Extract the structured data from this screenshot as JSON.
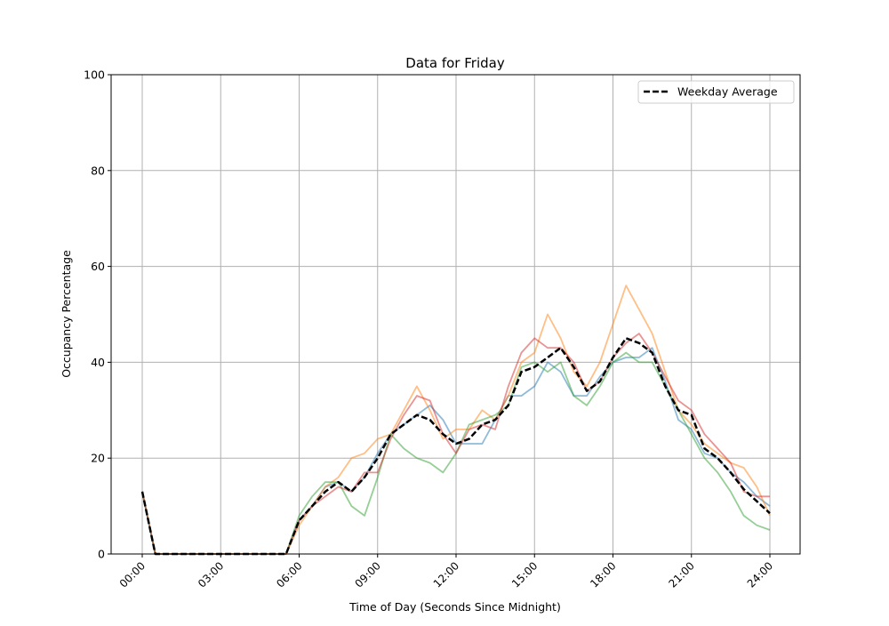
{
  "chart_data": {
    "type": "line",
    "title": "Data for Friday",
    "xlabel": "Time of Day (Seconds Since Midnight)",
    "ylabel": "Occupancy Percentage",
    "ylim": [
      0,
      100
    ],
    "xlim": [
      -4283,
      90560
    ],
    "grid": true,
    "legend_position": "top-right",
    "x_ticks": [
      {
        "value": 0,
        "label": "00:00"
      },
      {
        "value": 10800,
        "label": "03:00"
      },
      {
        "value": 21600,
        "label": "06:00"
      },
      {
        "value": 32400,
        "label": "09:00"
      },
      {
        "value": 43200,
        "label": "12:00"
      },
      {
        "value": 54000,
        "label": "15:00"
      },
      {
        "value": 64800,
        "label": "18:00"
      },
      {
        "value": 75600,
        "label": "21:00"
      },
      {
        "value": 86400,
        "label": "24:00"
      }
    ],
    "y_ticks": [
      {
        "value": 0,
        "label": "0"
      },
      {
        "value": 20,
        "label": "20"
      },
      {
        "value": 40,
        "label": "40"
      },
      {
        "value": 60,
        "label": "60"
      },
      {
        "value": 80,
        "label": "80"
      },
      {
        "value": 100,
        "label": "100"
      }
    ],
    "x": [
      0,
      1800,
      3600,
      5400,
      7200,
      9000,
      10800,
      12600,
      14400,
      16200,
      18000,
      19800,
      21600,
      23400,
      25200,
      27000,
      28800,
      30600,
      32400,
      34200,
      36000,
      37800,
      39600,
      41400,
      43200,
      45000,
      46800,
      48600,
      50400,
      52200,
      54000,
      55800,
      57600,
      59400,
      61200,
      63000,
      64800,
      66600,
      68400,
      70200,
      72000,
      73800,
      75600,
      77400,
      79200,
      81000,
      82800,
      84600,
      86400
    ],
    "series": [
      {
        "color": "#1f77b4",
        "values": [
          13,
          0,
          0,
          0,
          0,
          0,
          0,
          0,
          0,
          0,
          0,
          0,
          7,
          10,
          14,
          15,
          13,
          16,
          21,
          25,
          27,
          29,
          31,
          28,
          23,
          23,
          23,
          28,
          33,
          33,
          35,
          40,
          38,
          33,
          33,
          37,
          40,
          41,
          41,
          43,
          36,
          28,
          26,
          21,
          20,
          17,
          15,
          12,
          10
        ]
      },
      {
        "color": "#ff7f0e",
        "values": [
          13,
          0,
          0,
          0,
          0,
          0,
          0,
          0,
          0,
          0,
          0,
          0,
          6,
          10,
          14,
          16,
          20,
          21,
          24,
          25,
          30,
          35,
          30,
          24,
          26,
          26,
          30,
          28,
          33,
          40,
          42,
          50,
          45,
          38,
          35,
          40,
          48,
          56,
          51,
          46,
          38,
          30,
          27,
          23,
          21,
          19,
          18,
          14,
          8
        ]
      },
      {
        "color": "#2ca02c",
        "values": [
          13,
          0,
          0,
          0,
          0,
          0,
          0,
          0,
          0,
          0,
          0,
          0,
          8,
          12,
          15,
          15,
          10,
          8,
          16,
          25,
          22,
          20,
          19,
          17,
          21,
          27,
          28,
          29,
          31,
          39,
          40,
          38,
          40,
          33,
          31,
          35,
          40,
          42,
          40,
          40,
          35,
          30,
          25,
          20,
          17,
          13,
          8,
          6,
          5
        ]
      },
      {
        "color": "#d62728",
        "values": [
          13,
          0,
          0,
          0,
          0,
          0,
          0,
          0,
          0,
          0,
          0,
          0,
          7,
          10,
          12,
          14,
          13,
          17,
          17,
          24,
          29,
          33,
          32,
          25,
          21,
          26,
          27,
          26,
          35,
          42,
          45,
          43,
          43,
          40,
          34,
          36,
          41,
          44,
          46,
          42,
          37,
          32,
          30,
          25,
          22,
          19,
          13,
          12,
          12
        ]
      },
      {
        "name": "Weekday Average",
        "color": "#000000",
        "dashed": true,
        "values": [
          13,
          0,
          0,
          0,
          0,
          0,
          0,
          0,
          0,
          0,
          0,
          0,
          7,
          10,
          13,
          15,
          13,
          16,
          20,
          25,
          27,
          29,
          28,
          25,
          23,
          24,
          27,
          28,
          31,
          38,
          39,
          41,
          43,
          39,
          34,
          36,
          41,
          45,
          44,
          42,
          35,
          30,
          29,
          22,
          20,
          17,
          13.5,
          11,
          8.5
        ]
      }
    ]
  }
}
